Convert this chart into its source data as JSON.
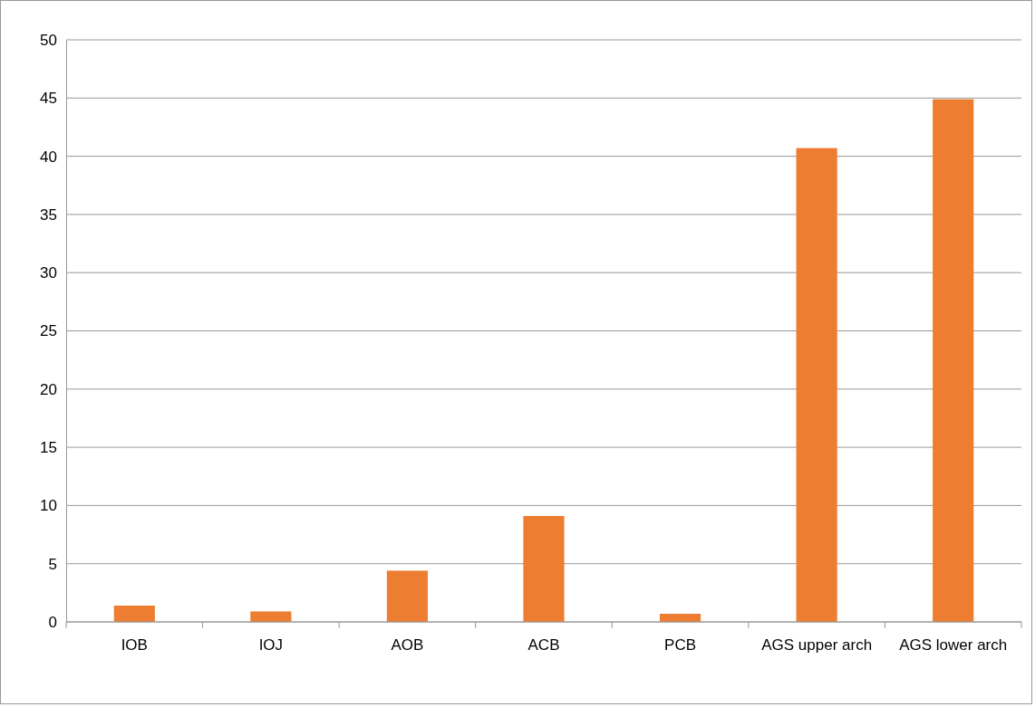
{
  "chart_data": {
    "type": "bar",
    "categories": [
      "IOB",
      "IOJ",
      "AOB",
      "ACB",
      "PCB",
      "AGS upper arch",
      "AGS lower arch"
    ],
    "values": [
      1.4,
      0.9,
      4.4,
      9.1,
      0.7,
      40.7,
      44.9
    ],
    "color": "#ed7d31",
    "ylim": [
      0,
      50
    ],
    "yticks": [
      0,
      5,
      10,
      15,
      20,
      25,
      30,
      35,
      40,
      45,
      50
    ],
    "grid": "y"
  }
}
